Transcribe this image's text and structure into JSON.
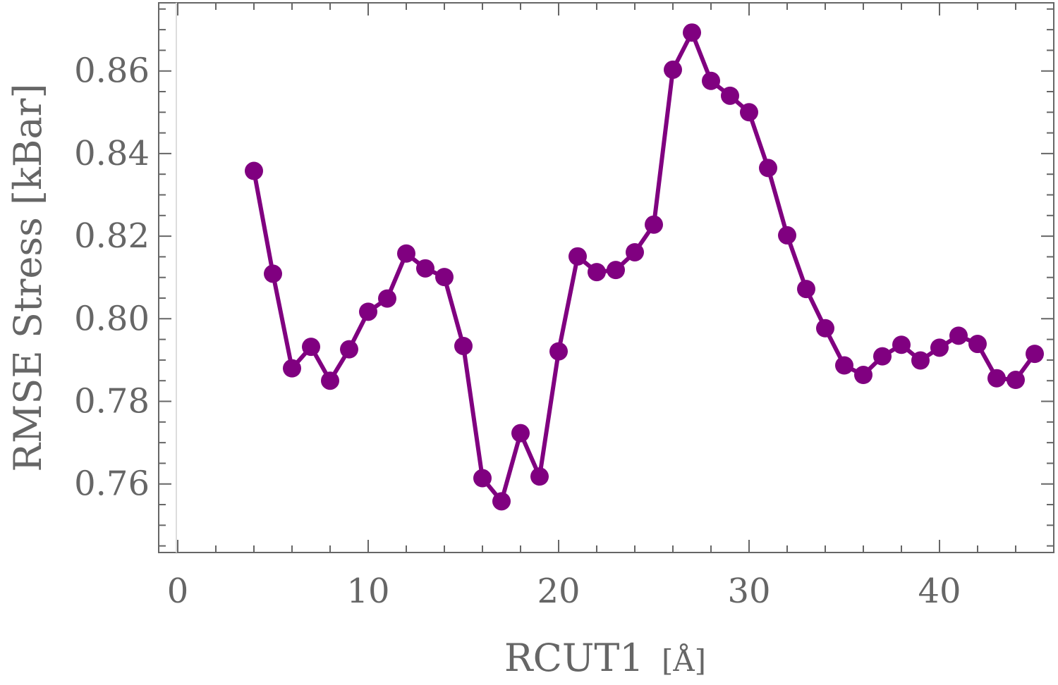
{
  "chart_data": {
    "type": "line",
    "title": "",
    "xlabel": "RCUT1",
    "xlabel_unit": "[Å]",
    "ylabel": "RMSE Stress [kBar]",
    "xlim": [
      -1,
      46
    ],
    "ylim": [
      0.7434,
      0.8765
    ],
    "grid": false,
    "legend": "none",
    "colors": {
      "series": "#800080",
      "axis": "#666666",
      "tick_text": "#666666"
    },
    "x_ticks": [
      0,
      10,
      20,
      30,
      40
    ],
    "x_tick_labels": [
      "0",
      "10",
      "20",
      "30",
      "40"
    ],
    "y_ticks": [
      0.76,
      0.78,
      0.8,
      0.82,
      0.84,
      0.86
    ],
    "y_tick_labels": [
      "0.76",
      "0.78",
      "0.80",
      "0.82",
      "0.84",
      "0.86"
    ],
    "series": [
      {
        "x": [
          4,
          5,
          6,
          7,
          8,
          9,
          10,
          11,
          12,
          13,
          14,
          15,
          16,
          17,
          18,
          19,
          20,
          21,
          22,
          23,
          24,
          25,
          26,
          27,
          28,
          29,
          30,
          31,
          32,
          33,
          34,
          35,
          36,
          37,
          38,
          39,
          40,
          41,
          42,
          43,
          44,
          45
        ],
        "y": [
          0.8358,
          0.8109,
          0.788,
          0.7932,
          0.785,
          0.7926,
          0.8017,
          0.8049,
          0.8158,
          0.8122,
          0.8101,
          0.7934,
          0.7614,
          0.7558,
          0.7723,
          0.7618,
          0.7921,
          0.8151,
          0.8113,
          0.8118,
          0.8161,
          0.8228,
          0.8603,
          0.8693,
          0.8576,
          0.854,
          0.85,
          0.8365,
          0.8202,
          0.8072,
          0.7977,
          0.7887,
          0.7864,
          0.7909,
          0.7937,
          0.7899,
          0.793,
          0.7959,
          0.7939,
          0.7856,
          0.7852,
          0.7915
        ]
      }
    ]
  }
}
